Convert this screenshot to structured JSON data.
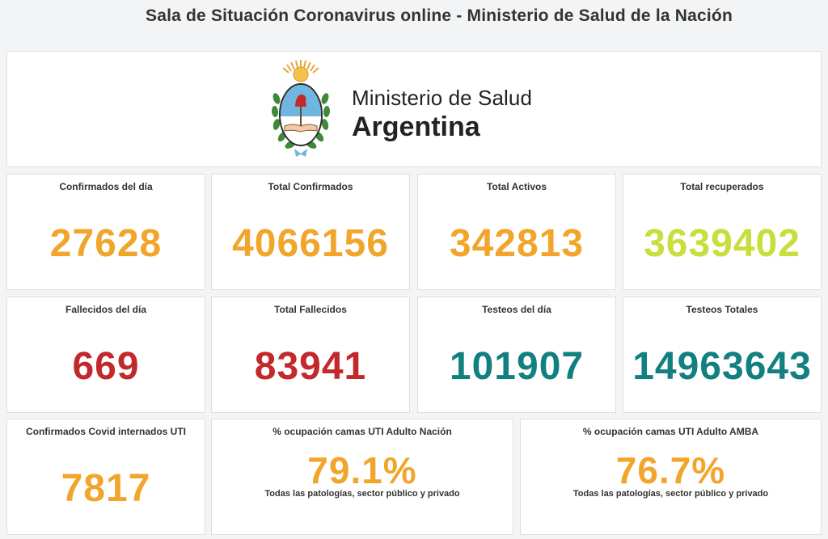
{
  "header": {
    "title": "Sala de Situación Coronavirus online - Ministerio de Salud de la Nación"
  },
  "brand": {
    "line1": "Ministerio de Salud",
    "line2": "Argentina",
    "crest_icon": "argentina-coat-of-arms-icon"
  },
  "colors": {
    "orange": "#f2a52b",
    "yellow_green": "#c7de3c",
    "red": "#c3282b",
    "teal": "#127f80"
  },
  "cards": {
    "confirmados_dia": {
      "label": "Confirmados del día",
      "value": "27628",
      "color": "#f2a52b"
    },
    "total_confirmados": {
      "label": "Total Confirmados",
      "value": "4066156",
      "color": "#f2a52b"
    },
    "total_activos": {
      "label": "Total Activos",
      "value": "342813",
      "color": "#f2a52b"
    },
    "total_recuperados": {
      "label": "Total recuperados",
      "value": "3639402",
      "color": "#c7de3c"
    },
    "fallecidos_dia": {
      "label": "Fallecidos del día",
      "value": "669",
      "color": "#c3282b"
    },
    "total_fallecidos": {
      "label": "Total Fallecidos",
      "value": "83941",
      "color": "#c3282b"
    },
    "testeos_dia": {
      "label": "Testeos del día",
      "value": "101907",
      "color": "#127f80"
    },
    "testeos_totales": {
      "label": "Testeos Totales",
      "value": "14963643",
      "color": "#127f80"
    },
    "internados_uti": {
      "label": "Confirmados Covid internados UTI",
      "value": "7817",
      "color": "#f2a52b"
    },
    "ocupacion_nacion": {
      "label": "% ocupación camas UTI Adulto Nación",
      "value": "79.1%",
      "sub": "Todas las patologías, sector público y privado",
      "color": "#f2a52b"
    },
    "ocupacion_amba": {
      "label": "% ocupación camas UTI Adulto AMBA",
      "value": "76.7%",
      "sub": "Todas las patologías, sector público y privado",
      "color": "#f2a52b"
    }
  }
}
